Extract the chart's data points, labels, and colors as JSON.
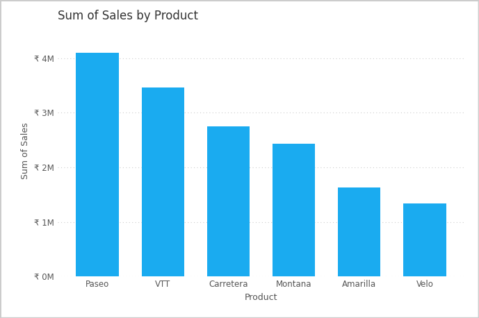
{
  "title": "Sum of Sales by Product",
  "xlabel": "Product",
  "ylabel": "Sum of Sales",
  "categories": [
    "Paseo",
    "VTT",
    "Carretera",
    "Montana",
    "Amarilla",
    "Velo"
  ],
  "values": [
    4100000,
    3470000,
    2750000,
    2430000,
    1630000,
    1340000
  ],
  "bar_color": "#1AABF0",
  "background_color": "#FFFFFF",
  "ylim": [
    0,
    4600000
  ],
  "yticks": [
    0,
    1000000,
    2000000,
    3000000,
    4000000
  ],
  "ytick_labels": [
    "₹ 0M",
    "₹ 1M",
    "₹ 2M",
    "₹ 3M",
    "₹ 4M"
  ],
  "title_fontsize": 12,
  "axis_label_fontsize": 9,
  "tick_fontsize": 8.5,
  "grid_color": "#CCCCCC",
  "bar_width": 0.65,
  "border_color": "#CCCCCC"
}
